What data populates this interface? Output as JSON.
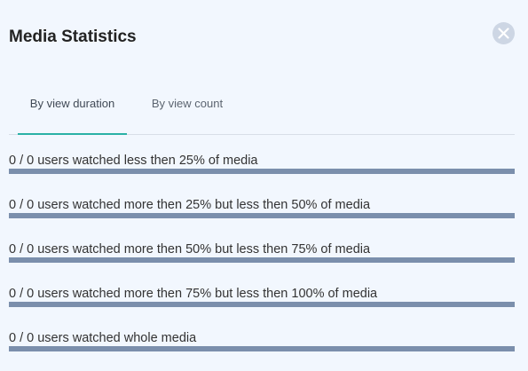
{
  "dialog": {
    "title": "Media Statistics",
    "close_icon": "close-circle-icon"
  },
  "tabs": [
    {
      "label": "By view duration",
      "active": true
    },
    {
      "label": "By view count",
      "active": false
    }
  ],
  "stats": [
    {
      "label": "0 / 0 users watched less then 25% of media",
      "watched": 0,
      "total": 0
    },
    {
      "label": "0 / 0 users watched more then 25% but less then 50% of media",
      "watched": 0,
      "total": 0
    },
    {
      "label": "0 / 0 users watched more then 50% but less then 75% of media",
      "watched": 0,
      "total": 0
    },
    {
      "label": "0 / 0 users watched more then 75% but less then 100% of media",
      "watched": 0,
      "total": 0
    },
    {
      "label": "0 / 0 users watched whole media",
      "watched": 0,
      "total": 0
    }
  ],
  "colors": {
    "accent": "#2ab1a6",
    "bar": "#7b8fac",
    "background": "#f2f7fe"
  }
}
